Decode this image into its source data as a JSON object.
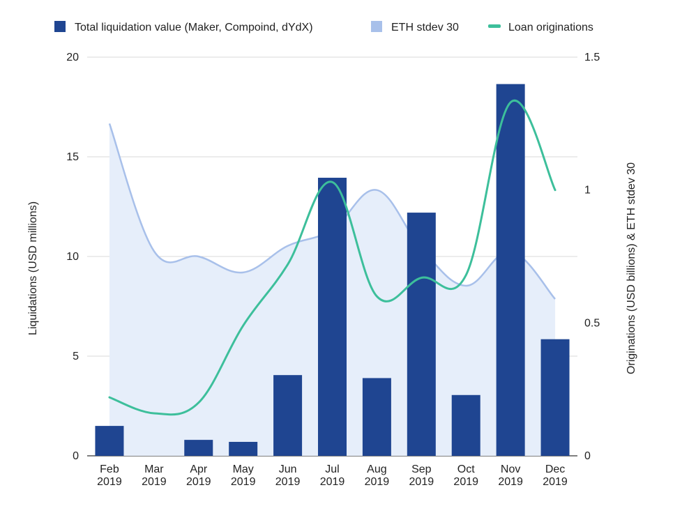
{
  "chart_data": {
    "type": "bar",
    "categories": [
      [
        "Feb",
        "2019"
      ],
      [
        "Mar",
        "2019"
      ],
      [
        "Apr",
        "2019"
      ],
      [
        "May",
        "2019"
      ],
      [
        "Jun",
        "2019"
      ],
      [
        "Jul",
        "2019"
      ],
      [
        "Aug",
        "2019"
      ],
      [
        "Sep",
        "2019"
      ],
      [
        "Oct",
        "2019"
      ],
      [
        "Nov",
        "2019"
      ],
      [
        "Dec",
        "2019"
      ]
    ],
    "series": [
      {
        "name": "Total liquidation value (Maker, Compoind, dYdX)",
        "type": "bar",
        "axis": "left",
        "color": "#1f4591",
        "values": [
          1.5,
          0,
          0.8,
          0.7,
          4.05,
          13.95,
          3.9,
          12.2,
          3.05,
          18.65,
          5.85
        ]
      },
      {
        "name": "ETH stdev 30",
        "type": "area",
        "axis": "right",
        "color": "#a8c0ea",
        "fill": "#e6eefa",
        "values": [
          1.25,
          0.77,
          0.75,
          0.69,
          0.79,
          0.85,
          1.0,
          0.78,
          0.64,
          0.77,
          0.59
        ]
      },
      {
        "name": "Loan originations",
        "type": "line",
        "axis": "right",
        "color": "#3dbf9b",
        "values": [
          0.22,
          0.16,
          0.2,
          0.49,
          0.72,
          1.03,
          0.6,
          0.67,
          0.68,
          1.33,
          1.0
        ]
      }
    ],
    "y_left": {
      "label": "Liquidations (USD millions)",
      "ylim": [
        0,
        20
      ],
      "ticks": [
        0,
        5,
        10,
        15,
        20
      ]
    },
    "y_right": {
      "label": "Originations (USD billions) & ETH stdev 30",
      "ylim": [
        0,
        1.5
      ],
      "ticks": [
        "0",
        "0.5",
        "1",
        "1.5"
      ]
    },
    "grid": true,
    "legend_position": "top",
    "gridline_color": "#d8d8d8"
  }
}
